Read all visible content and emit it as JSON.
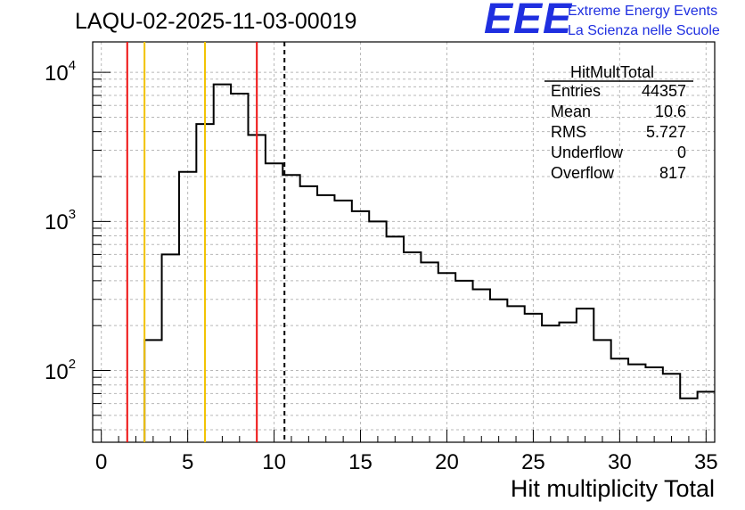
{
  "chart_data": {
    "type": "histogram",
    "title": "LAQU-02-2025-11-03-00019",
    "xlabel": "Hit multiplicity Total",
    "ylabel": "",
    "yscale": "log",
    "xlim": [
      -0.5,
      35.5
    ],
    "ylim": [
      33,
      16000
    ],
    "grid": true,
    "x_ticks": [
      0,
      5,
      10,
      15,
      20,
      25,
      30,
      35
    ],
    "x_tick_labels": [
      "0",
      "5",
      "10",
      "15",
      "20",
      "25",
      "30",
      "35"
    ],
    "y_ticks": [
      {
        "value": 100,
        "base": "10",
        "exp": "2"
      },
      {
        "value": 1000,
        "base": "10",
        "exp": "3"
      },
      {
        "value": 10000,
        "base": "10",
        "exp": "4"
      }
    ],
    "bin_edges": [
      -0.5,
      0.5,
      1.5,
      2.5,
      3.5,
      4.5,
      5.5,
      6.5,
      7.5,
      8.5,
      9.5,
      10.5,
      11.5,
      12.5,
      13.5,
      14.5,
      15.5,
      16.5,
      17.5,
      18.5,
      19.5,
      20.5,
      21.5,
      22.5,
      23.5,
      24.5,
      25.5,
      26.5,
      27.5,
      28.5,
      29.5,
      30.5,
      31.5,
      32.5,
      33.5,
      34.5,
      35.5
    ],
    "counts": [
      0,
      0,
      0,
      160,
      600,
      2150,
      4500,
      8300,
      7200,
      3800,
      2450,
      2050,
      1720,
      1500,
      1380,
      1170,
      1000,
      790,
      620,
      530,
      450,
      400,
      350,
      300,
      270,
      240,
      200,
      210,
      260,
      160,
      120,
      110,
      105,
      95,
      65,
      72
    ],
    "vertical_lines": [
      {
        "x": 1.5,
        "color": "#ee1111",
        "style": "solid"
      },
      {
        "x": 2.5,
        "color": "#f2c200",
        "style": "solid"
      },
      {
        "x": 6.0,
        "color": "#f2c200",
        "style": "solid"
      },
      {
        "x": 9.0,
        "color": "#ee1111",
        "style": "solid"
      },
      {
        "x": 10.6,
        "color": "#000000",
        "style": "dashed"
      }
    ],
    "stats": {
      "name": "HitMultTotal",
      "rows": [
        {
          "label": "Entries",
          "value": "44357"
        },
        {
          "label": "Mean",
          "value": "10.6"
        },
        {
          "label": "RMS",
          "value": "5.727"
        },
        {
          "label": "Underflow",
          "value": "0"
        },
        {
          "label": "Overflow",
          "value": "817"
        }
      ]
    }
  },
  "logo": {
    "mark": "EEE",
    "line1": "Extreme Energy Events",
    "line2": "La Scienza nelle Scuole",
    "color": "#1f2fe0"
  }
}
